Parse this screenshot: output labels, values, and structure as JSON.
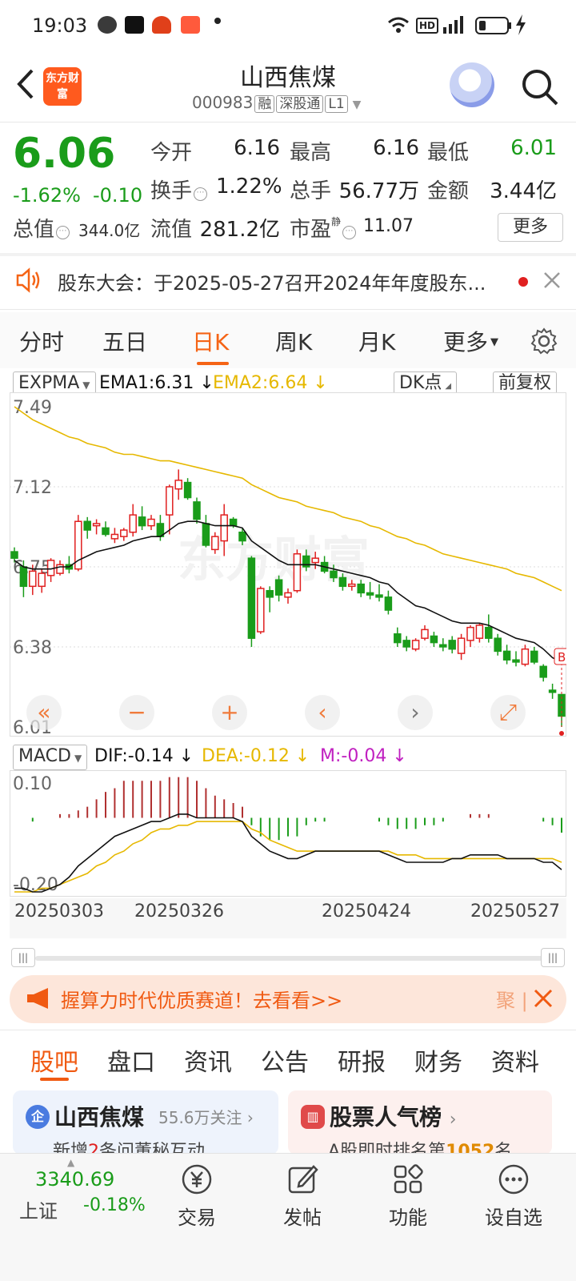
{
  "status_bar": {
    "time": "19:03",
    "net": "HD"
  },
  "header": {
    "logo_text": "东方财富",
    "stock_name": "山西焦煤",
    "stock_code": "000983",
    "tags": [
      "融",
      "深股通",
      "L1"
    ]
  },
  "quote": {
    "price": "6.06",
    "change_pct": "-1.62%",
    "change_abs": "-0.10",
    "mktcap_label": "总值",
    "mktcap_value": "344.0亿",
    "open_label": "今开",
    "open": "6.16",
    "high_label": "最高",
    "high": "6.16",
    "low_label": "最低",
    "low": "6.01",
    "turnover_label": "换手",
    "turnover": "1.22%",
    "volume_label": "总手",
    "volume": "56.77万",
    "amount_label": "金额",
    "amount": "3.44亿",
    "float_label": "流值",
    "float_value": "281.2亿",
    "pe_label": "市盈",
    "pe_sup": "静",
    "pe": "11.07",
    "more_button": "更多"
  },
  "notice": {
    "text": "股东大会：于2025-05-27召开2024年年度股东..."
  },
  "kline_tabs": {
    "items": [
      "分时",
      "五日",
      "日K",
      "周K",
      "月K",
      "更多"
    ],
    "active": "日K"
  },
  "indicator_main": {
    "selector": "EXPMA",
    "ema1": "EMA1:6.31",
    "ema2": "EMA2:6.64",
    "dk_button": "DK点",
    "adjust_button": "前复权"
  },
  "indicator_sub": {
    "selector": "MACD",
    "dif": "DIF:-0.14",
    "dea": "DEA:-0.12",
    "m": "M:-0.04"
  },
  "colors": {
    "up": "#e02020",
    "down": "#1a9c1a",
    "ema1": "#111111",
    "ema2": "#e6b800",
    "accent": "#f56416"
  },
  "chart_data": [
    {
      "type": "candlestick",
      "title": "",
      "y_ticks": [
        "7.49",
        "7.12",
        "6.75",
        "6.38",
        "6.01"
      ],
      "ylim": [
        6.01,
        7.49
      ],
      "watermark": "东方财富",
      "candles": [
        {
          "o": 6.82,
          "h": 6.84,
          "l": 6.77,
          "c": 6.79
        },
        {
          "o": 6.75,
          "h": 6.78,
          "l": 6.61,
          "c": 6.66
        },
        {
          "o": 6.66,
          "h": 6.76,
          "l": 6.62,
          "c": 6.73
        },
        {
          "o": 6.66,
          "h": 6.74,
          "l": 6.63,
          "c": 6.72
        },
        {
          "o": 6.71,
          "h": 6.79,
          "l": 6.68,
          "c": 6.78
        },
        {
          "o": 6.72,
          "h": 6.78,
          "l": 6.71,
          "c": 6.76
        },
        {
          "o": 6.76,
          "h": 6.8,
          "l": 6.72,
          "c": 6.74
        },
        {
          "o": 6.74,
          "h": 6.99,
          "l": 6.73,
          "c": 6.96
        },
        {
          "o": 6.96,
          "h": 6.98,
          "l": 6.88,
          "c": 6.92
        },
        {
          "o": 6.94,
          "h": 6.97,
          "l": 6.9,
          "c": 6.95
        },
        {
          "o": 6.93,
          "h": 6.96,
          "l": 6.89,
          "c": 6.9
        },
        {
          "o": 6.88,
          "h": 6.93,
          "l": 6.86,
          "c": 6.9
        },
        {
          "o": 6.89,
          "h": 6.93,
          "l": 6.87,
          "c": 6.92
        },
        {
          "o": 6.91,
          "h": 7.04,
          "l": 6.89,
          "c": 6.99
        },
        {
          "o": 6.98,
          "h": 7.03,
          "l": 6.92,
          "c": 6.94
        },
        {
          "o": 6.94,
          "h": 6.99,
          "l": 6.92,
          "c": 6.97
        },
        {
          "o": 6.95,
          "h": 6.99,
          "l": 6.87,
          "c": 6.89
        },
        {
          "o": 6.99,
          "h": 7.13,
          "l": 6.9,
          "c": 7.12
        },
        {
          "o": 7.11,
          "h": 7.2,
          "l": 7.06,
          "c": 7.15
        },
        {
          "o": 7.14,
          "h": 7.16,
          "l": 7.06,
          "c": 7.07
        },
        {
          "o": 7.05,
          "h": 7.07,
          "l": 6.95,
          "c": 6.97
        },
        {
          "o": 6.95,
          "h": 6.99,
          "l": 6.84,
          "c": 6.85
        },
        {
          "o": 6.83,
          "h": 6.91,
          "l": 6.81,
          "c": 6.89
        },
        {
          "o": 6.87,
          "h": 7.04,
          "l": 6.8,
          "c": 6.99
        },
        {
          "o": 6.97,
          "h": 6.98,
          "l": 6.93,
          "c": 6.94
        },
        {
          "o": 6.91,
          "h": 6.93,
          "l": 6.85,
          "c": 6.87
        },
        {
          "o": 6.79,
          "h": 6.8,
          "l": 6.38,
          "c": 6.42
        },
        {
          "o": 6.45,
          "h": 6.66,
          "l": 6.44,
          "c": 6.65
        },
        {
          "o": 6.64,
          "h": 6.66,
          "l": 6.54,
          "c": 6.61
        },
        {
          "o": 6.69,
          "h": 6.71,
          "l": 6.59,
          "c": 6.62
        },
        {
          "o": 6.61,
          "h": 6.65,
          "l": 6.58,
          "c": 6.63
        },
        {
          "o": 6.64,
          "h": 6.83,
          "l": 6.63,
          "c": 6.81
        },
        {
          "o": 6.8,
          "h": 6.83,
          "l": 6.73,
          "c": 6.75
        },
        {
          "o": 6.77,
          "h": 6.82,
          "l": 6.74,
          "c": 6.79
        },
        {
          "o": 6.77,
          "h": 6.8,
          "l": 6.72,
          "c": 6.73
        },
        {
          "o": 6.73,
          "h": 6.76,
          "l": 6.68,
          "c": 6.7
        },
        {
          "o": 6.7,
          "h": 6.72,
          "l": 6.64,
          "c": 6.66
        },
        {
          "o": 6.66,
          "h": 6.69,
          "l": 6.64,
          "c": 6.67
        },
        {
          "o": 6.67,
          "h": 6.69,
          "l": 6.61,
          "c": 6.63
        },
        {
          "o": 6.63,
          "h": 6.68,
          "l": 6.6,
          "c": 6.62
        },
        {
          "o": 6.62,
          "h": 6.67,
          "l": 6.59,
          "c": 6.61
        },
        {
          "o": 6.61,
          "h": 6.64,
          "l": 6.53,
          "c": 6.55
        },
        {
          "o": 6.44,
          "h": 6.47,
          "l": 6.38,
          "c": 6.4
        },
        {
          "o": 6.41,
          "h": 6.43,
          "l": 6.36,
          "c": 6.38
        },
        {
          "o": 6.37,
          "h": 6.42,
          "l": 6.36,
          "c": 6.41
        },
        {
          "o": 6.42,
          "h": 6.48,
          "l": 6.41,
          "c": 6.46
        },
        {
          "o": 6.43,
          "h": 6.45,
          "l": 6.38,
          "c": 6.4
        },
        {
          "o": 6.39,
          "h": 6.42,
          "l": 6.36,
          "c": 6.38
        },
        {
          "o": 6.41,
          "h": 6.43,
          "l": 6.35,
          "c": 6.37
        },
        {
          "o": 6.35,
          "h": 6.44,
          "l": 6.32,
          "c": 6.42
        },
        {
          "o": 6.41,
          "h": 6.48,
          "l": 6.38,
          "c": 6.47
        },
        {
          "o": 6.42,
          "h": 6.49,
          "l": 6.4,
          "c": 6.48
        },
        {
          "o": 6.47,
          "h": 6.53,
          "l": 6.4,
          "c": 6.42
        },
        {
          "o": 6.42,
          "h": 6.44,
          "l": 6.34,
          "c": 6.36
        },
        {
          "o": 6.36,
          "h": 6.39,
          "l": 6.3,
          "c": 6.32
        },
        {
          "o": 6.32,
          "h": 6.36,
          "l": 6.29,
          "c": 6.31
        },
        {
          "o": 6.3,
          "h": 6.39,
          "l": 6.29,
          "c": 6.37
        },
        {
          "o": 6.36,
          "h": 6.38,
          "l": 6.3,
          "c": 6.31
        },
        {
          "o": 6.29,
          "h": 6.3,
          "l": 6.22,
          "c": 6.24
        },
        {
          "o": 6.18,
          "h": 6.21,
          "l": 6.14,
          "c": 6.17
        },
        {
          "o": 6.16,
          "h": 6.16,
          "l": 6.01,
          "c": 6.06
        }
      ],
      "ema1": [
        6.78,
        6.75,
        6.74,
        6.74,
        6.74,
        6.75,
        6.75,
        6.78,
        6.8,
        6.82,
        6.83,
        6.84,
        6.85,
        6.87,
        6.88,
        6.89,
        6.89,
        6.92,
        6.95,
        6.96,
        6.96,
        6.95,
        6.94,
        6.94,
        6.94,
        6.93,
        6.87,
        6.84,
        6.81,
        6.78,
        6.76,
        6.76,
        6.76,
        6.76,
        6.75,
        6.74,
        6.73,
        6.72,
        6.71,
        6.7,
        6.68,
        6.67,
        6.63,
        6.6,
        6.57,
        6.56,
        6.54,
        6.52,
        6.5,
        6.49,
        6.49,
        6.49,
        6.48,
        6.46,
        6.44,
        6.42,
        6.41,
        6.4,
        6.37,
        6.33,
        6.31
      ],
      "ema2": [
        7.49,
        7.46,
        7.43,
        7.41,
        7.39,
        7.37,
        7.35,
        7.34,
        7.32,
        7.31,
        7.3,
        7.28,
        7.27,
        7.27,
        7.26,
        7.25,
        7.24,
        7.24,
        7.23,
        7.22,
        7.21,
        7.2,
        7.19,
        7.18,
        7.17,
        7.16,
        7.13,
        7.11,
        7.09,
        7.07,
        7.06,
        7.05,
        7.03,
        7.02,
        7.01,
        7.0,
        6.98,
        6.97,
        6.96,
        6.94,
        6.93,
        6.91,
        6.89,
        6.88,
        6.86,
        6.85,
        6.83,
        6.81,
        6.8,
        6.79,
        6.78,
        6.77,
        6.76,
        6.75,
        6.74,
        6.72,
        6.71,
        6.7,
        6.68,
        6.66,
        6.64
      ],
      "series": [
        {
          "name": "EMA1"
        },
        {
          "name": "EMA2"
        }
      ]
    },
    {
      "type": "bar",
      "title": "",
      "y_ticks": [
        "0.10",
        "-0.20"
      ],
      "ylim": [
        -0.2,
        0.12
      ],
      "x_ticks": [
        "20250303",
        "20250326",
        "20250424",
        "20250527"
      ],
      "macd": [
        0.0,
        0.0,
        -0.01,
        0.0,
        0.0,
        0.01,
        0.01,
        0.02,
        0.03,
        0.05,
        0.07,
        0.08,
        0.1,
        0.1,
        0.1,
        0.1,
        0.1,
        0.11,
        0.11,
        0.11,
        0.1,
        0.08,
        0.06,
        0.05,
        0.04,
        0.03,
        -0.02,
        -0.05,
        -0.06,
        -0.06,
        -0.05,
        -0.05,
        -0.02,
        -0.01,
        -0.01,
        0.0,
        0.0,
        0.0,
        0.0,
        0.0,
        -0.01,
        -0.02,
        -0.03,
        -0.03,
        -0.03,
        -0.02,
        -0.02,
        -0.01,
        0.0,
        0.0,
        0.01,
        0.01,
        0.01,
        0.0,
        0.0,
        0.0,
        0.0,
        0.0,
        -0.01,
        -0.02,
        -0.04
      ],
      "dif": [
        -0.19,
        -0.19,
        -0.2,
        -0.2,
        -0.19,
        -0.18,
        -0.16,
        -0.13,
        -0.11,
        -0.09,
        -0.07,
        -0.05,
        -0.04,
        -0.03,
        -0.02,
        -0.01,
        -0.01,
        0.0,
        0.01,
        0.01,
        0.0,
        0.0,
        0.0,
        0.0,
        0.0,
        -0.01,
        -0.05,
        -0.07,
        -0.09,
        -0.1,
        -0.11,
        -0.11,
        -0.1,
        -0.09,
        -0.09,
        -0.09,
        -0.09,
        -0.09,
        -0.09,
        -0.09,
        -0.09,
        -0.1,
        -0.11,
        -0.12,
        -0.12,
        -0.12,
        -0.12,
        -0.12,
        -0.11,
        -0.11,
        -0.1,
        -0.1,
        -0.1,
        -0.1,
        -0.11,
        -0.11,
        -0.11,
        -0.11,
        -0.12,
        -0.12,
        -0.14
      ],
      "dea": [
        -0.2,
        -0.2,
        -0.2,
        -0.19,
        -0.19,
        -0.18,
        -0.17,
        -0.16,
        -0.15,
        -0.13,
        -0.12,
        -0.1,
        -0.09,
        -0.07,
        -0.06,
        -0.04,
        -0.03,
        -0.03,
        -0.02,
        -0.02,
        -0.01,
        -0.01,
        -0.01,
        -0.01,
        -0.01,
        -0.01,
        -0.03,
        -0.04,
        -0.06,
        -0.07,
        -0.08,
        -0.09,
        -0.09,
        -0.09,
        -0.09,
        -0.09,
        -0.09,
        -0.09,
        -0.09,
        -0.09,
        -0.09,
        -0.09,
        -0.1,
        -0.1,
        -0.1,
        -0.11,
        -0.11,
        -0.11,
        -0.11,
        -0.11,
        -0.11,
        -0.11,
        -0.11,
        -0.11,
        -0.11,
        -0.11,
        -0.11,
        -0.11,
        -0.11,
        -0.11,
        -0.12
      ],
      "series": [
        {
          "name": "DIF"
        },
        {
          "name": "DEA"
        },
        {
          "name": "M"
        }
      ]
    }
  ],
  "chart_toolbar": [
    "fast-backward",
    "zoom-out",
    "zoom-in",
    "prev",
    "next",
    "fullscreen"
  ],
  "ad_banner": {
    "text": "握算力时代优质赛道！去看看>>",
    "tail": "聚"
  },
  "bottom_tabs": {
    "items": [
      "股吧",
      "盘口",
      "资讯",
      "公告",
      "研报",
      "财务",
      "资料"
    ],
    "active": "股吧"
  },
  "cards": {
    "left": {
      "badge": "企",
      "title": "山西焦煤",
      "follow": "55.6万关注",
      "sub_prefix": "新增",
      "sub_count": "2",
      "sub_suffix": "条问董秘互动"
    },
    "right": {
      "title": "股票人气榜",
      "sub_prefix": "A股即时排名第",
      "sub_rank": "1052",
      "sub_suffix": "名"
    }
  },
  "bottom_nav": {
    "index_value": "3340.69",
    "index_name": "上证",
    "index_change": "-0.18%",
    "items": [
      {
        "label": "交易",
        "icon": "yuan-icon"
      },
      {
        "label": "发帖",
        "icon": "edit-icon"
      },
      {
        "label": "功能",
        "icon": "grid-icon"
      },
      {
        "label": "设自选",
        "icon": "more-icon"
      }
    ]
  }
}
